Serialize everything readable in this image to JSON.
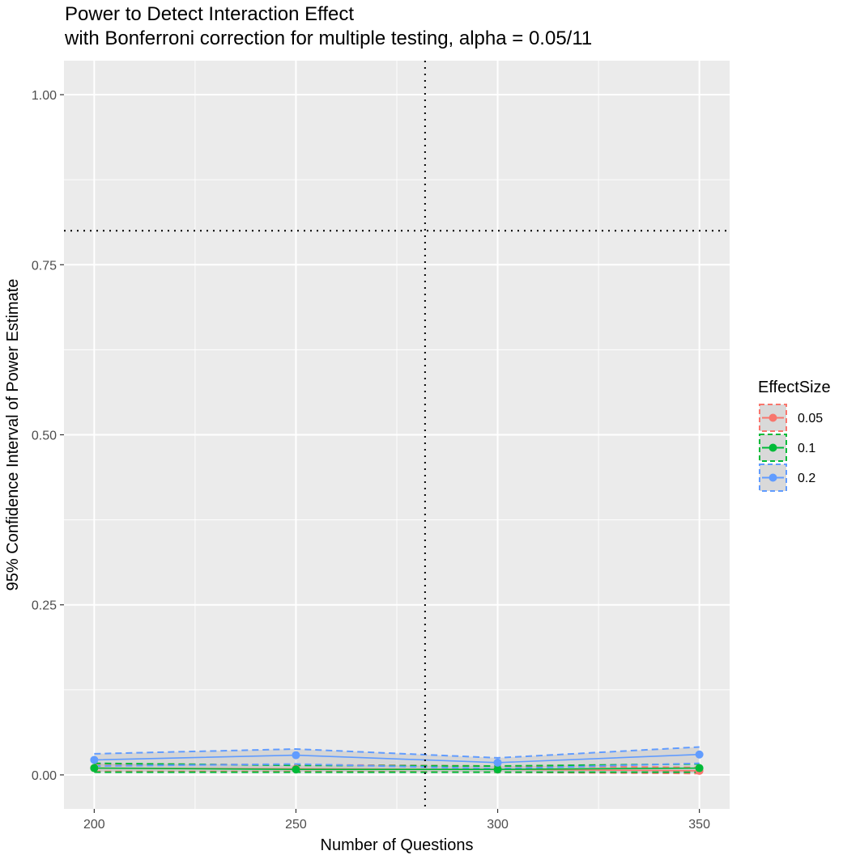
{
  "chart_data": {
    "type": "line",
    "title": "Power to Detect Interaction Effect",
    "subtitle": "with Bonferroni correction for multiple testing, alpha = 0.05/11",
    "xlabel": "Number of Questions",
    "ylabel": "95% Confidence Interval of Power Estimate",
    "xlim": [
      192.5,
      357.5
    ],
    "ylim": [
      -0.05,
      1.05
    ],
    "x_ticks": [
      200,
      250,
      300,
      350
    ],
    "x_tick_labels": [
      "200",
      "250",
      "300",
      "350"
    ],
    "y_ticks": [
      0,
      0.25,
      0.5,
      0.75,
      1.0
    ],
    "y_tick_labels": [
      "0.00",
      "0.25",
      "0.50",
      "0.75",
      "1.00"
    ],
    "grid": true,
    "reference_lines": {
      "hline_y": 0.8,
      "vline_x": 282
    },
    "legend": {
      "title": "EffectSize",
      "position": "right"
    },
    "x": [
      200,
      250,
      300,
      350
    ],
    "series": [
      {
        "name": "0.05",
        "color": "#F8766D",
        "values": [
          0.01,
          0.009,
          0.008,
          0.006
        ],
        "lower": [
          0.005,
          0.005,
          0.004,
          0.002
        ],
        "upper": [
          0.016,
          0.015,
          0.013,
          0.011
        ]
      },
      {
        "name": "0.1",
        "color": "#00BA38",
        "values": [
          0.01,
          0.008,
          0.008,
          0.01
        ],
        "lower": [
          0.004,
          0.004,
          0.004,
          0.004
        ],
        "upper": [
          0.017,
          0.014,
          0.013,
          0.016
        ]
      },
      {
        "name": "0.2",
        "color": "#619CFF",
        "values": [
          0.022,
          0.029,
          0.018,
          0.03
        ],
        "lower": [
          0.013,
          0.016,
          0.009,
          0.017
        ],
        "upper": [
          0.031,
          0.038,
          0.025,
          0.041
        ]
      }
    ]
  }
}
